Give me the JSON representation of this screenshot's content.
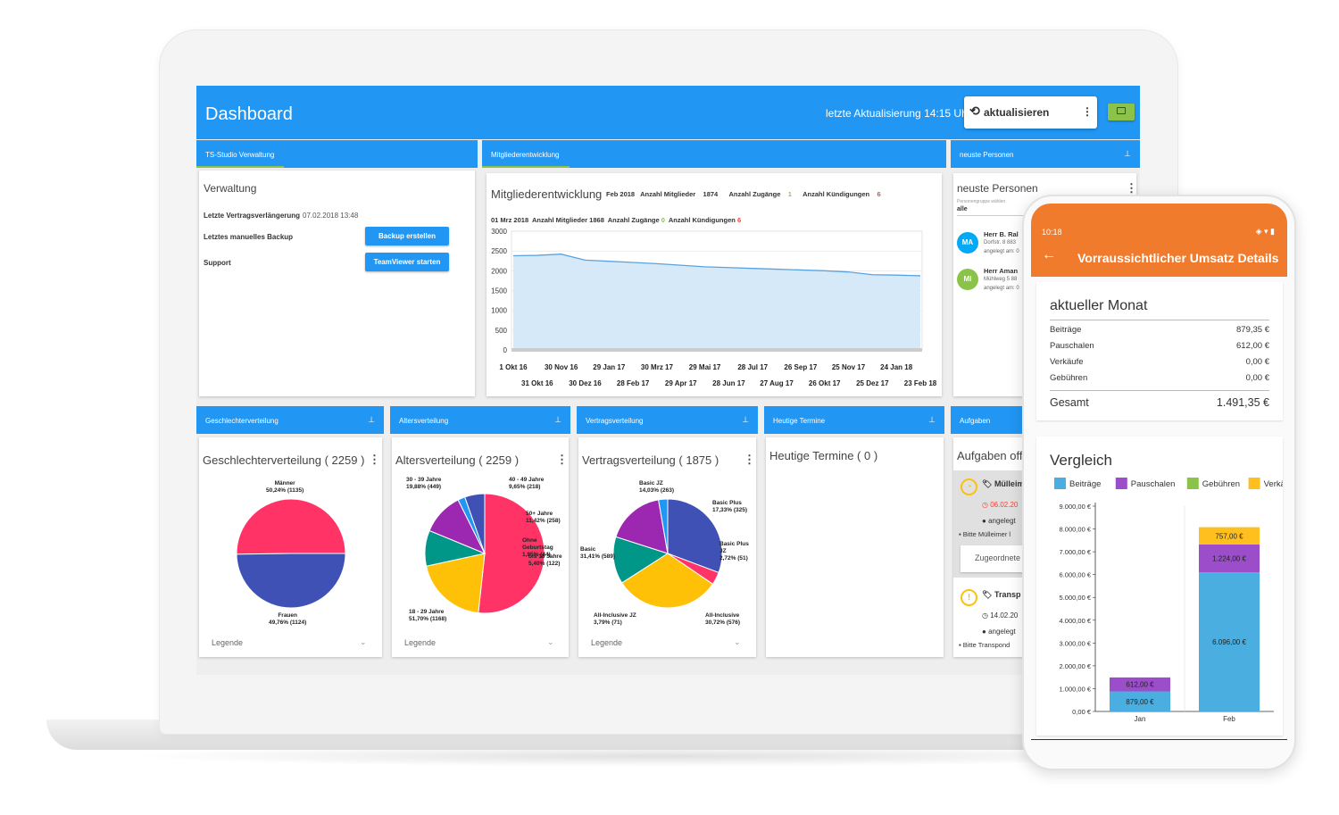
{
  "header": {
    "title": "Dashboard",
    "last_update": "letzte Aktualisierung 14:15 Uhr",
    "refresh_label": "aktualisieren",
    "menu_icon": "⋮"
  },
  "verwaltung": {
    "tab": "TS-Studio Verwaltung",
    "title": "Verwaltung",
    "rows": [
      {
        "label": "Letzte Vertragsverlängerung",
        "value": "07.02.2018 13:48"
      },
      {
        "label": "Letztes manuelles Backup",
        "button": "Backup erstellen"
      },
      {
        "label": "Support",
        "button": "TeamViewer starten"
      }
    ]
  },
  "mitglieder": {
    "tab": "Mitgliederentwicklung",
    "title": "Mitgliederentwicklung",
    "summary1": {
      "month": "Feb 2018",
      "members_label": "Anzahl Mitglieder",
      "members": "1874",
      "adds_label": "Anzahl Zugänge",
      "adds": "1",
      "cancels_label": "Anzahl Kündigungen",
      "cancels": "6"
    },
    "summary2": {
      "date": "01 Mrz 2018",
      "members_label": "Anzahl Mitglieder 1868",
      "adds_label": "Anzahl Zugänge",
      "adds": "0",
      "cancels_label": "Anzahl Kündigungen",
      "cancels": "6"
    }
  },
  "personen": {
    "tab": "neuste Personen",
    "title": "neuste Personen",
    "filter_label": "Personengruppe wählen",
    "filter_value": "alle",
    "items": [
      {
        "initials": "MA",
        "color": "#03a9f4",
        "name": "Herr B. Ral",
        "addr": "Dorfstr. 8  883",
        "date": "angelegt am: 0"
      },
      {
        "initials": "MI",
        "color": "#8bc34a",
        "name": "Herr Aman",
        "addr": "Mühlweg 5  88",
        "date": "angelegt am: 0"
      }
    ]
  },
  "geschlecht": {
    "tab": "Geschlechterverteilung",
    "title": "Geschlechterverteilung",
    "count": "2259",
    "legend": "Legende",
    "labels": [
      {
        "name": "Männer",
        "pct": "50,24% (1135)"
      },
      {
        "name": "Frauen",
        "pct": "49,76% (1124)"
      }
    ]
  },
  "alter": {
    "tab": "Altersverteilung",
    "title": "Altersverteilung",
    "count": "2259",
    "legend": "Legende",
    "labels": [
      {
        "name": "30 - 39 Jahre",
        "pct": "19,88% (449)"
      },
      {
        "name": "40 - 49 Jahre",
        "pct": "9,65% (218)"
      },
      {
        "name": "50+ Jahre",
        "pct": "11,42% (258)"
      },
      {
        "name": "Ohne Geburtstag",
        "pct": "1,95% (44)"
      },
      {
        "name": "bis 18 Jahre",
        "pct": "5,40% (122)"
      },
      {
        "name": "18 - 29 Jahre",
        "pct": "51,70% (1168)"
      }
    ]
  },
  "vertrag": {
    "tab": "Vertragsverteilung",
    "title": "Vertragsverteilung",
    "count": "1875",
    "legend": "Legende",
    "labels": [
      {
        "name": "Basic JZ",
        "pct": "14,03% (263)"
      },
      {
        "name": "Basic Plus",
        "pct": "17,33% (325)"
      },
      {
        "name": "Basic Plus JZ",
        "pct": "2,72% (51)"
      },
      {
        "name": "Basic",
        "pct": "31,41% (589)"
      },
      {
        "name": "All-Inclusive JZ",
        "pct": "3,79% (71)"
      },
      {
        "name": "All-Inclusive",
        "pct": "30,72% (576)"
      }
    ]
  },
  "termine": {
    "tab": "Heutige Termine",
    "title": "Heutige Termine",
    "count": "0"
  },
  "aufgaben": {
    "tab": "Aufgaben",
    "title": "Aufgaben offe",
    "items": [
      {
        "title": "Mülleim",
        "date": "06.02.20",
        "who": "angelegt",
        "desc": "Bitte Mülleimer l",
        "assigned": "Zugeordnete"
      },
      {
        "title": "Transp",
        "date": "14.02.20",
        "who": "angelegt",
        "desc": "Bitte Transpond"
      }
    ]
  },
  "phone": {
    "time": "10:18",
    "title": "Vorraussichtlicher Umsatz Details",
    "month_title": "aktueller Monat",
    "rows": [
      {
        "label": "Beiträge",
        "value": "879,35 €"
      },
      {
        "label": "Pauschalen",
        "value": "612,00 €"
      },
      {
        "label": "Verkäufe",
        "value": "0,00 €"
      },
      {
        "label": "Gebühren",
        "value": "0,00 €"
      }
    ],
    "total_label": "Gesamt",
    "total_value": "1.491,35 €",
    "compare_title": "Vergleich"
  },
  "chart_data": [
    {
      "type": "area",
      "title": "Mitgliederentwicklung",
      "x": [
        "1 Okt 16",
        "31 Okt 16",
        "30 Nov 16",
        "30 Dez 16",
        "29 Jan 17",
        "28 Feb 17",
        "30 Mrz 17",
        "29 Apr 17",
        "29 Mai 17",
        "28 Jun 17",
        "28 Jul 17",
        "27 Aug 17",
        "26 Sep 17",
        "26 Okt 17",
        "25 Nov 17",
        "25 Dez 17",
        "24 Jan 18",
        "23 Feb 18"
      ],
      "values": [
        2380,
        2390,
        2420,
        2270,
        2240,
        2210,
        2180,
        2140,
        2100,
        2080,
        2060,
        2040,
        2020,
        2000,
        1970,
        1900,
        1890,
        1874
      ],
      "ylim": [
        0,
        3000
      ],
      "yticks": [
        0,
        500,
        1000,
        1500,
        2000,
        2500,
        3000
      ],
      "color": "#5ba3e0"
    },
    {
      "type": "pie",
      "title": "Geschlechterverteilung",
      "categories": [
        "Männer",
        "Frauen"
      ],
      "values": [
        1135,
        1124
      ],
      "colors": [
        "#ff3366",
        "#3f51b5"
      ]
    },
    {
      "type": "pie",
      "title": "Altersverteilung",
      "categories": [
        "18 - 29 Jahre",
        "30 - 39 Jahre",
        "40 - 49 Jahre",
        "50+ Jahre",
        "Ohne Geburtstag",
        "bis 18 Jahre"
      ],
      "values": [
        1168,
        449,
        218,
        258,
        44,
        122
      ],
      "colors": [
        "#ff3366",
        "#ffc107",
        "#009688",
        "#9c27b0",
        "#2196f3",
        "#3f51b5"
      ]
    },
    {
      "type": "pie",
      "title": "Vertragsverteilung",
      "categories": [
        "All-Inclusive",
        "All-Inclusive JZ",
        "Basic",
        "Basic JZ",
        "Basic Plus",
        "Basic Plus JZ"
      ],
      "values": [
        576,
        71,
        589,
        263,
        325,
        51
      ],
      "colors": [
        "#3f51b5",
        "#ff3366",
        "#ffc107",
        "#009688",
        "#9c27b0",
        "#2196f3"
      ]
    },
    {
      "type": "bar",
      "stacked": true,
      "title": "Vergleich",
      "categories": [
        "Jan",
        "Feb"
      ],
      "series": [
        {
          "name": "Beiträge",
          "values": [
            879,
            6096
          ],
          "labels": [
            "879,00 €",
            "6.096,00 €"
          ],
          "color": "#4aaee0"
        },
        {
          "name": "Pauschalen",
          "values": [
            612,
            1224
          ],
          "labels": [
            "612,00 €",
            "1.224,00 €"
          ],
          "color": "#9b4dca"
        },
        {
          "name": "Gebühren",
          "values": [
            0,
            0
          ],
          "labels": [
            "",
            ""
          ],
          "color": "#8bc34a"
        },
        {
          "name": "Verkä",
          "values": [
            0,
            757
          ],
          "labels": [
            "",
            "757,00 €"
          ],
          "color": "#ffbf1f"
        }
      ],
      "ylim": [
        0,
        9000
      ],
      "yticks": [
        "0,00 €",
        "1.000,00 €",
        "2.000,00 €",
        "3.000,00 €",
        "4.000,00 €",
        "5.000,00 €",
        "6.000,00 €",
        "7.000,00 €",
        "8.000,00 €",
        "9.000,00 €"
      ]
    }
  ]
}
